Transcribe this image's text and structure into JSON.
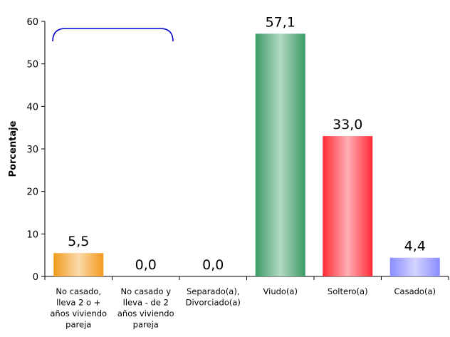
{
  "chart_data": {
    "type": "bar",
    "ylabel": "Porcentaje",
    "xlabel": "",
    "title": "",
    "ylim": [
      0,
      60
    ],
    "yticks": [
      0,
      10,
      20,
      30,
      40,
      50,
      60
    ],
    "grid": false,
    "legend": "none",
    "categories": [
      "No casado, lleva 2 o + años viviendo pareja",
      "No casado y lleva - de 2 años viviendo pareja",
      "Separado(a), Divorciado(a)",
      "Viudo(a)",
      "Soltero(a)",
      "Casado(a)"
    ],
    "category_lines": [
      [
        "No casado,",
        "lleva 2 o +",
        "años viviendo",
        "pareja"
      ],
      [
        "No casado y",
        "lleva - de 2",
        "años viviendo",
        "pareja"
      ],
      [
        "Separado(a),",
        "Divorciado(a)"
      ],
      [
        "Viudo(a)"
      ],
      [
        "Soltero(a)"
      ],
      [
        "Casado(a)"
      ]
    ],
    "values": [
      5.5,
      0.0,
      0.0,
      57.1,
      33.0,
      4.4
    ],
    "value_labels": [
      "5,5",
      "0,0",
      "0,0",
      "57,1",
      "33,0",
      "4,4"
    ],
    "colors": [
      "#f39a1e",
      "#cccccc",
      "#cccccc",
      "#3a9a64",
      "#ff2a36",
      "#8a8cff"
    ],
    "bracket_color": "#0000cc"
  }
}
